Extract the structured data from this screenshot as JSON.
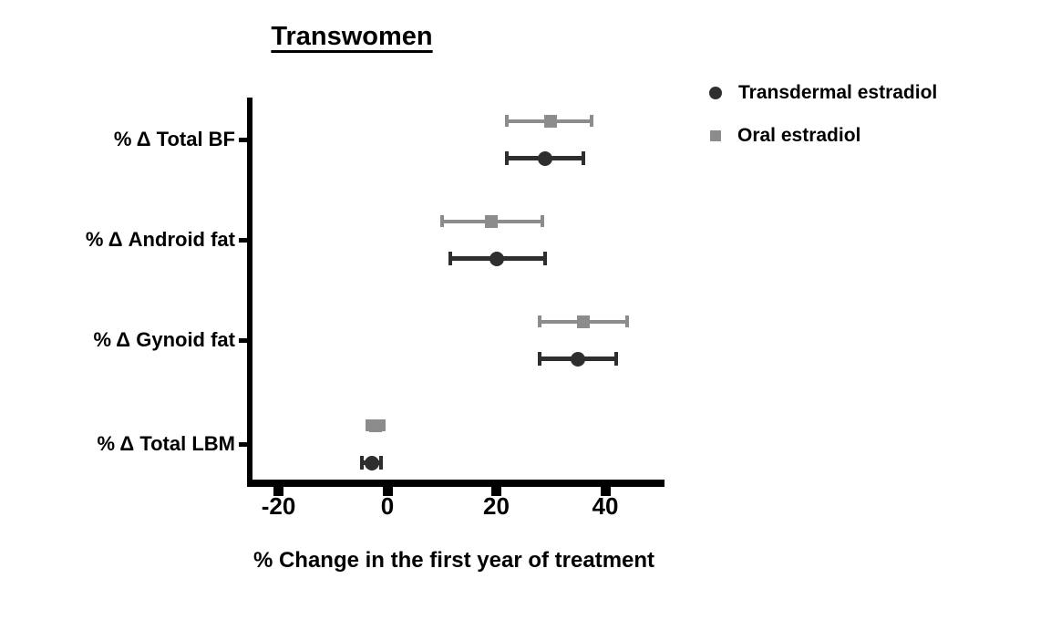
{
  "chart_data": {
    "type": "scatter",
    "title": "Transwomen",
    "xlabel": "% Change in the first year of treatment",
    "xlim": [
      -25,
      51
    ],
    "xticks": [
      -20,
      0,
      20,
      40
    ],
    "grid": false,
    "legend_position": "top-right",
    "categories": [
      "% Δ Total BF",
      "% Δ Android fat",
      "% Δ Gynoid fat",
      "% Δ Total LBM"
    ],
    "series": [
      {
        "name": "Transdermal estradiol",
        "marker": "circle",
        "color": "#2e2e2e",
        "values": [
          29,
          20,
          35,
          -2.8
        ],
        "ci_low": [
          22,
          11.5,
          28,
          -4.7
        ],
        "ci_high": [
          36,
          29,
          42,
          -1.2
        ]
      },
      {
        "name": "Oral estradiol",
        "marker": "square",
        "color": "#8c8c8c",
        "values": [
          30,
          19,
          36,
          -2.2
        ],
        "ci_low": [
          22,
          10,
          28,
          -3.7
        ],
        "ci_high": [
          37.5,
          28.5,
          44,
          -0.6
        ]
      }
    ]
  }
}
